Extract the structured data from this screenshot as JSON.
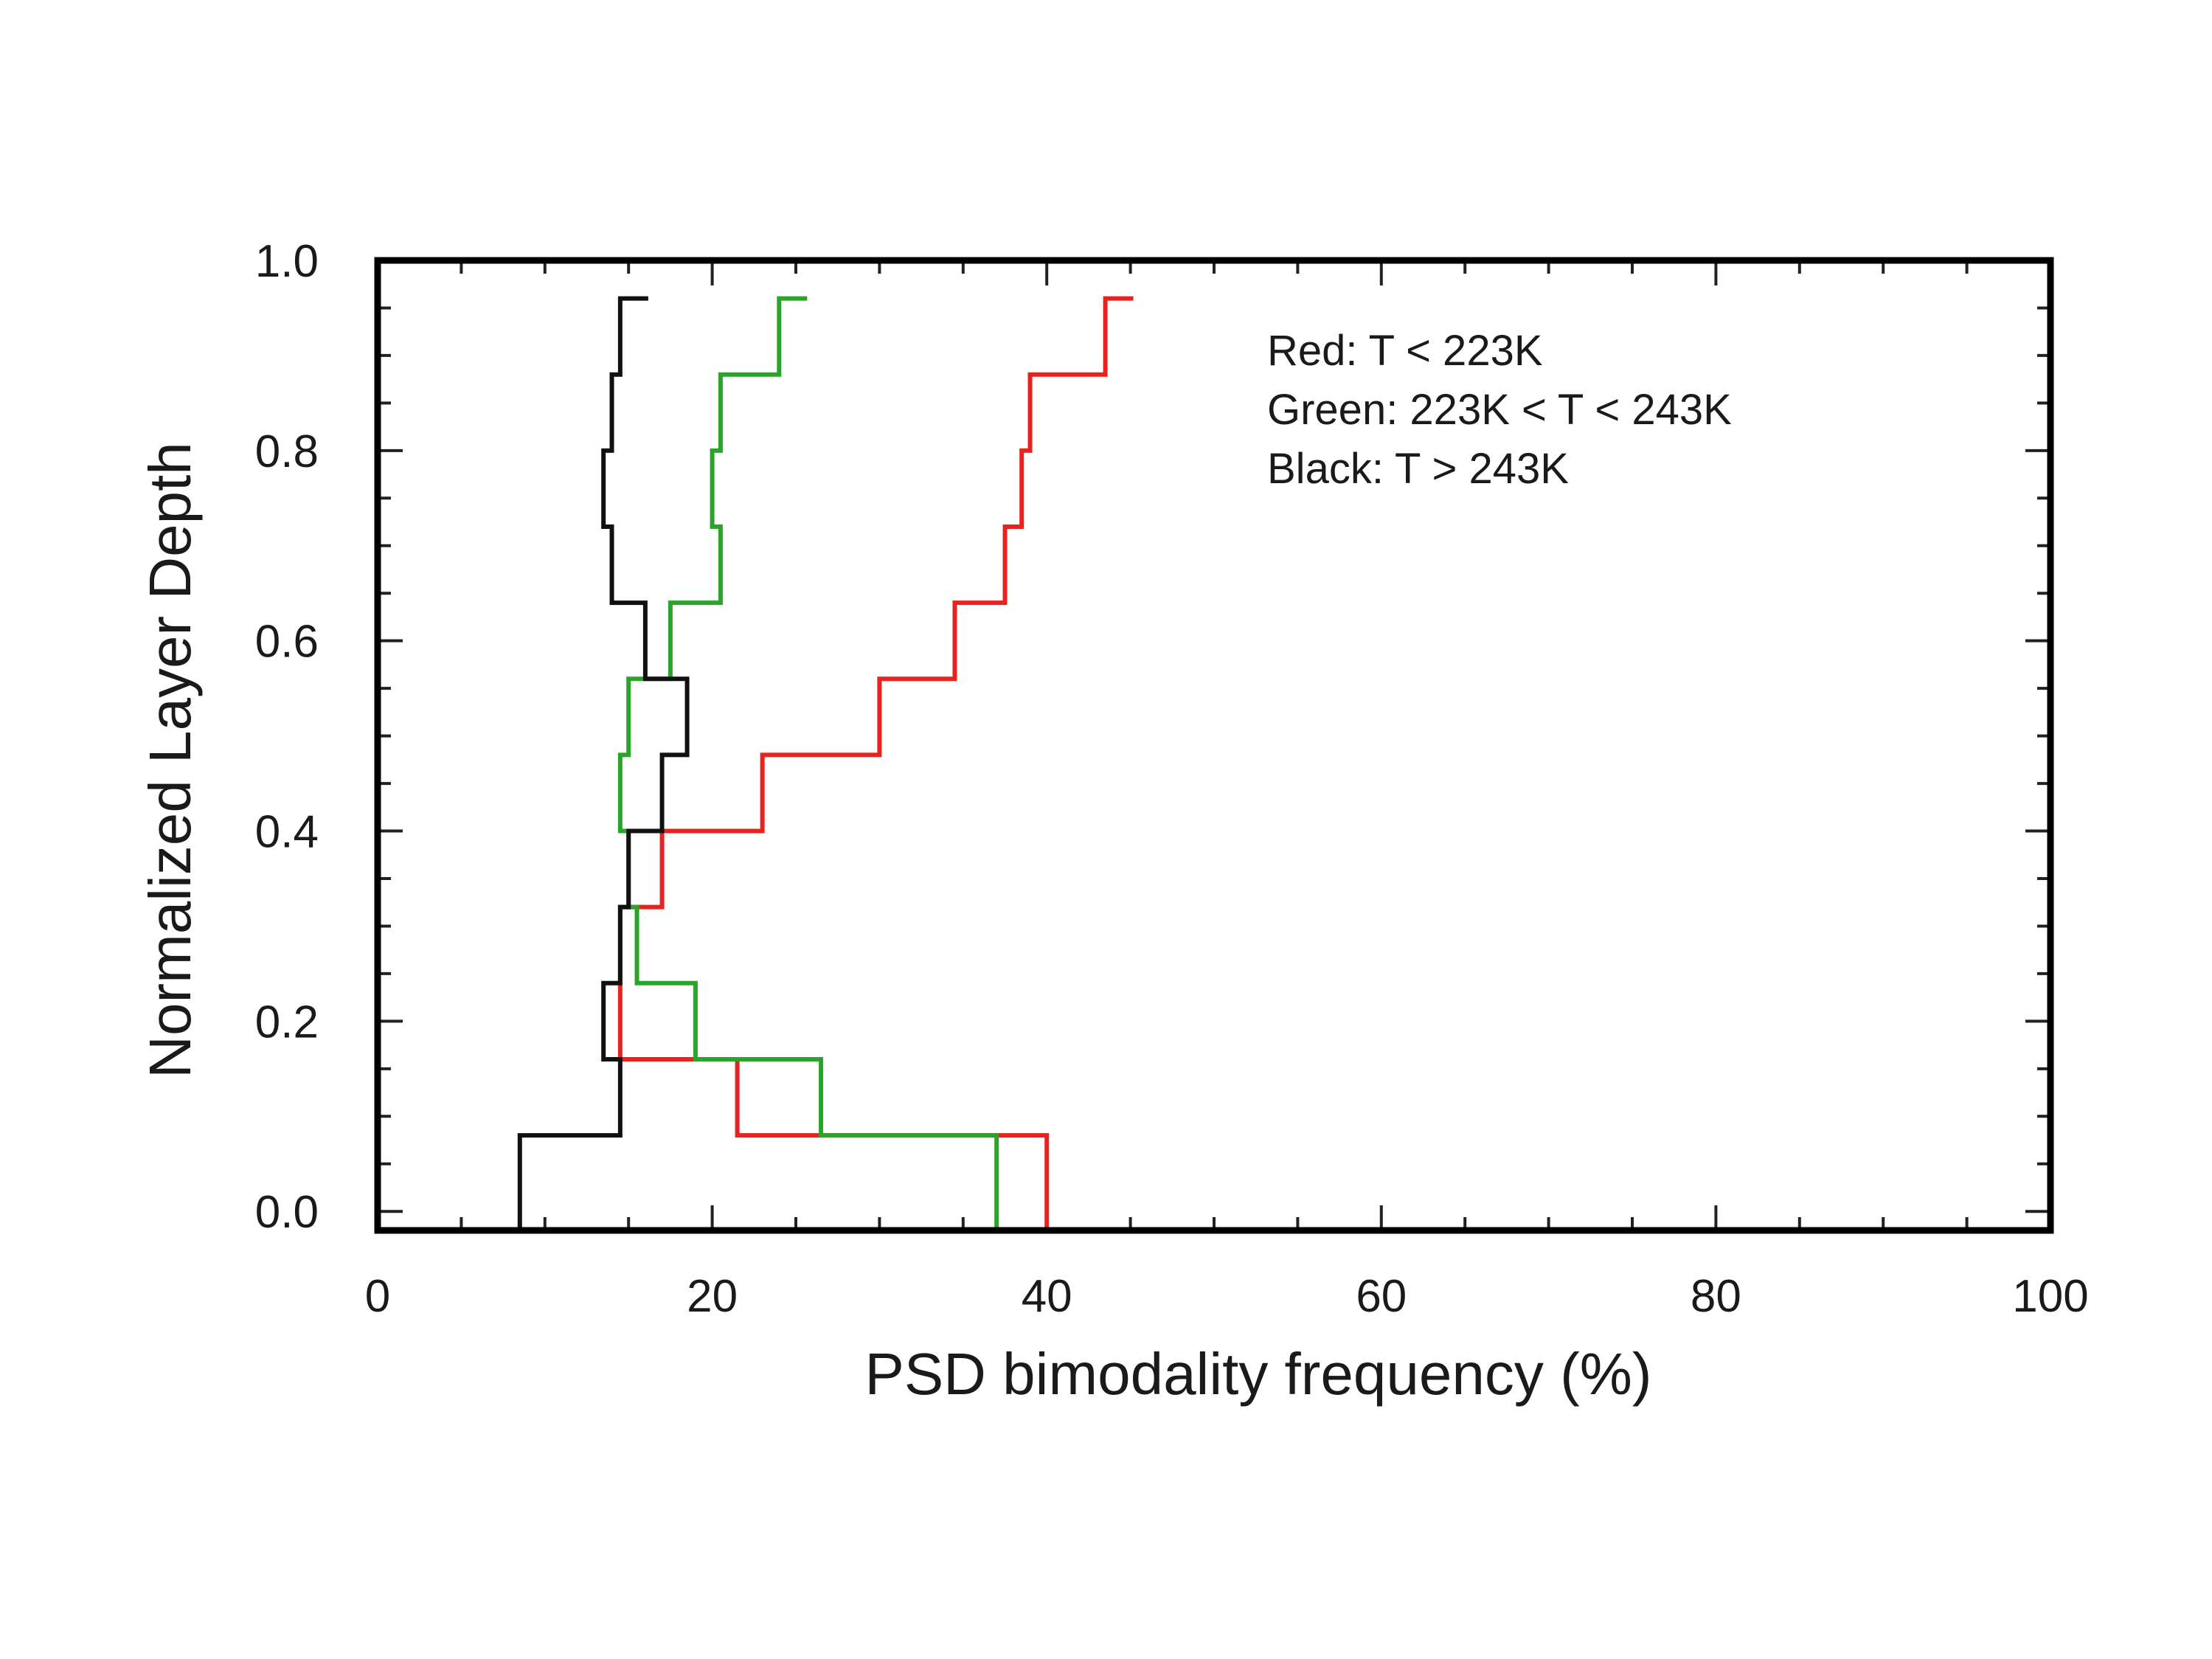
{
  "chart_data": {
    "type": "line",
    "xlabel": "PSD bimodality frequency (%)",
    "ylabel": "Normalized Layer Depth",
    "xlim": [
      0,
      100
    ],
    "ylim": [
      -0.02,
      1.0
    ],
    "xticks": [
      0,
      20,
      40,
      60,
      80,
      100
    ],
    "xtick_labels": [
      "0",
      "20",
      "40",
      "60",
      "80",
      "100"
    ],
    "yticks": [
      0.0,
      0.2,
      0.4,
      0.6,
      0.8,
      1.0
    ],
    "ytick_labels": [
      "0.0",
      "0.2",
      "0.4",
      "0.6",
      "0.8",
      "1.0"
    ],
    "grid": false,
    "legend_position": "top-right",
    "annotations": [
      "Red:  T < 223K",
      "Green:  223K < T < 243K",
      "Black:  T > 243K"
    ],
    "series": [
      {
        "color": "#e8231e",
        "bins": [
          {
            "y0": -0.02,
            "y1": 0.08,
            "x": 40.0
          },
          {
            "y0": 0.08,
            "y1": 0.16,
            "x": 21.5
          },
          {
            "y0": 0.16,
            "y1": 0.24,
            "x": 14.5
          },
          {
            "y0": 0.24,
            "y1": 0.32,
            "x": 14.5
          },
          {
            "y0": 0.32,
            "y1": 0.4,
            "x": 17.0
          },
          {
            "y0": 0.4,
            "y1": 0.48,
            "x": 23.0
          },
          {
            "y0": 0.48,
            "y1": 0.56,
            "x": 30.0
          },
          {
            "y0": 0.56,
            "y1": 0.64,
            "x": 34.5
          },
          {
            "y0": 0.64,
            "y1": 0.72,
            "x": 37.5
          },
          {
            "y0": 0.72,
            "y1": 0.8,
            "x": 38.5
          },
          {
            "y0": 0.8,
            "y1": 0.88,
            "x": 39.0
          },
          {
            "y0": 0.88,
            "y1": 0.96,
            "x": 43.5
          }
        ]
      },
      {
        "color": "#2aa52a",
        "bins": [
          {
            "y0": -0.02,
            "y1": 0.08,
            "x": 37.0
          },
          {
            "y0": 0.08,
            "y1": 0.16,
            "x": 26.5
          },
          {
            "y0": 0.16,
            "y1": 0.24,
            "x": 19.0
          },
          {
            "y0": 0.24,
            "y1": 0.32,
            "x": 15.5
          },
          {
            "y0": 0.32,
            "y1": 0.4,
            "x": 15.0
          },
          {
            "y0": 0.4,
            "y1": 0.48,
            "x": 14.5
          },
          {
            "y0": 0.48,
            "y1": 0.56,
            "x": 15.0
          },
          {
            "y0": 0.56,
            "y1": 0.64,
            "x": 17.5
          },
          {
            "y0": 0.64,
            "y1": 0.72,
            "x": 20.5
          },
          {
            "y0": 0.72,
            "y1": 0.8,
            "x": 20.0
          },
          {
            "y0": 0.8,
            "y1": 0.88,
            "x": 20.5
          },
          {
            "y0": 0.88,
            "y1": 0.96,
            "x": 24.0
          }
        ]
      },
      {
        "color": "#111111",
        "bins": [
          {
            "y0": -0.02,
            "y1": 0.08,
            "x": 8.5
          },
          {
            "y0": 0.08,
            "y1": 0.16,
            "x": 14.5
          },
          {
            "y0": 0.16,
            "y1": 0.24,
            "x": 13.5
          },
          {
            "y0": 0.24,
            "y1": 0.32,
            "x": 14.5
          },
          {
            "y0": 0.32,
            "y1": 0.4,
            "x": 15.0
          },
          {
            "y0": 0.4,
            "y1": 0.48,
            "x": 17.0
          },
          {
            "y0": 0.48,
            "y1": 0.56,
            "x": 18.5
          },
          {
            "y0": 0.56,
            "y1": 0.64,
            "x": 16.0
          },
          {
            "y0": 0.64,
            "y1": 0.72,
            "x": 14.0
          },
          {
            "y0": 0.72,
            "y1": 0.8,
            "x": 13.5
          },
          {
            "y0": 0.8,
            "y1": 0.88,
            "x": 14.0
          },
          {
            "y0": 0.88,
            "y1": 0.96,
            "x": 14.5
          }
        ]
      }
    ]
  }
}
